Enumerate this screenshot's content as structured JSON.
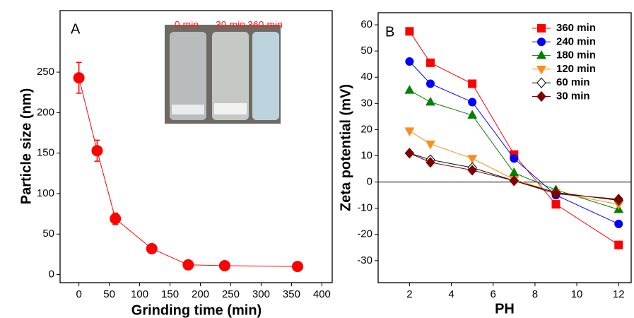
{
  "chart_data": [
    {
      "type": "line",
      "annotation": "A",
      "x_label": "Grinding time (min)",
      "y_label": "Particle size (nm)",
      "inset_labels": [
        "0 min",
        "30 min",
        "360 min"
      ],
      "x": [
        0,
        30,
        60,
        120,
        180,
        240,
        360
      ],
      "series": [
        {
          "color": "#ff0000",
          "marker": "circle",
          "values": [
            243,
            153,
            69,
            32,
            12,
            11,
            10
          ],
          "errors": [
            19,
            13,
            7,
            3,
            2,
            2,
            2
          ]
        }
      ],
      "xlim": [
        -31,
        417
      ],
      "ylim": [
        -10,
        326
      ],
      "xticks": [
        0,
        50,
        100,
        150,
        200,
        250,
        300,
        350,
        400
      ],
      "yticks": [
        0,
        50,
        100,
        150,
        200,
        250
      ],
      "grid": false
    },
    {
      "type": "line",
      "annotation": "B",
      "x_label": "PH",
      "y_label": "Zeta potential (mV)",
      "x": [
        2,
        3,
        5,
        7,
        9,
        12
      ],
      "series": [
        {
          "name": "360 min",
          "color": "#ff0000",
          "marker": "square",
          "values": [
            57.5,
            45.5,
            37.5,
            10.5,
            -8.5,
            -24
          ]
        },
        {
          "name": "240 min",
          "color": "#0000ff",
          "marker": "circle",
          "values": [
            46,
            37.5,
            30.5,
            9,
            -5,
            -16
          ]
        },
        {
          "name": "180 min",
          "color": "#008000",
          "marker": "triangle-up",
          "values": [
            35,
            30.5,
            25.5,
            3.5,
            -3,
            -10.5
          ]
        },
        {
          "name": "120 min",
          "color": "#ff8c1a",
          "marker": "triangle-down",
          "values": [
            19.5,
            14.5,
            9,
            1,
            -4,
            -8.5
          ]
        },
        {
          "name": "60 min",
          "color": "#000000",
          "marker": "diamond-open",
          "values": [
            11,
            8.5,
            5.5,
            0.5,
            -4,
            -7
          ]
        },
        {
          "name": "30 min",
          "color": "#800000",
          "marker": "diamond",
          "values": [
            11,
            7.5,
            4.5,
            0.5,
            -4.5,
            -6.5
          ]
        }
      ],
      "xlim": [
        0.5,
        12.6
      ],
      "ylim": [
        -38.4,
        64.6
      ],
      "xticks": [
        2,
        4,
        6,
        8,
        10,
        12
      ],
      "yticks": [
        -30,
        -20,
        -10,
        0,
        10,
        20,
        30,
        40,
        50,
        60
      ],
      "grid": false,
      "zero_line": true,
      "legend": "top-right"
    }
  ]
}
